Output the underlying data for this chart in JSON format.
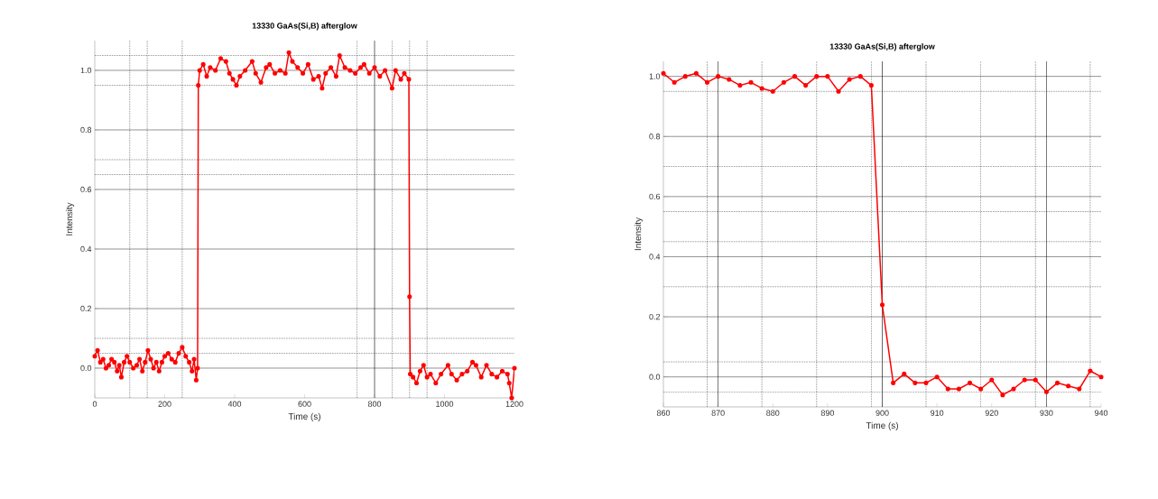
{
  "chart_data": [
    {
      "type": "line",
      "title": "13330 GaAs(Si,B) afterglow",
      "xlabel": "Time (s)",
      "ylabel": "Intensity",
      "grid": "y",
      "marker": "circle",
      "line_style": "solid",
      "x": [
        0,
        8,
        16,
        24,
        32,
        40,
        48,
        56,
        64,
        70,
        76,
        84,
        92,
        100,
        110,
        120,
        128,
        136,
        144,
        152,
        160,
        168,
        176,
        184,
        192,
        200,
        210,
        220,
        230,
        240,
        250,
        260,
        270,
        278,
        284,
        290,
        294,
        296,
        300,
        310,
        320,
        330,
        345,
        360,
        375,
        385,
        395,
        405,
        415,
        430,
        450,
        460,
        475,
        490,
        500,
        515,
        530,
        545,
        555,
        565,
        580,
        595,
        610,
        625,
        640,
        650,
        660,
        675,
        690,
        700,
        715,
        730,
        745,
        760,
        770,
        785,
        800,
        815,
        830,
        850,
        860,
        875,
        885,
        898,
        900,
        902,
        910,
        920,
        930,
        940,
        950,
        960,
        975,
        990,
        1010,
        1020,
        1035,
        1050,
        1065,
        1080,
        1090,
        1105,
        1120,
        1135,
        1150,
        1165,
        1180,
        1185,
        1192,
        1200
      ],
      "series": [
        {
          "color": "#ff0000",
          "values": [
            0.04,
            0.06,
            0.02,
            0.03,
            0.0,
            0.01,
            0.03,
            0.02,
            -0.01,
            0.01,
            -0.03,
            0.02,
            0.04,
            0.02,
            0.0,
            0.01,
            0.03,
            -0.01,
            0.02,
            0.06,
            0.03,
            0.0,
            0.02,
            -0.01,
            0.02,
            0.04,
            0.05,
            0.03,
            0.02,
            0.05,
            0.07,
            0.04,
            0.02,
            -0.01,
            0.03,
            -0.04,
            0.0,
            0.95,
            1.0,
            1.02,
            0.98,
            1.01,
            1.0,
            1.04,
            1.03,
            0.99,
            0.97,
            0.95,
            0.98,
            1.0,
            1.03,
            0.99,
            0.96,
            1.01,
            1.02,
            0.99,
            1.0,
            0.99,
            1.06,
            1.03,
            1.01,
            0.99,
            1.02,
            0.97,
            0.98,
            0.94,
            0.99,
            1.01,
            0.98,
            1.05,
            1.01,
            1.0,
            0.99,
            1.01,
            1.02,
            0.99,
            1.01,
            0.98,
            1.0,
            0.94,
            1.0,
            0.97,
            0.99,
            0.97,
            0.24,
            -0.02,
            -0.03,
            -0.05,
            -0.01,
            0.01,
            -0.03,
            -0.02,
            -0.05,
            -0.02,
            0.01,
            -0.02,
            -0.04,
            -0.02,
            -0.01,
            0.02,
            0.01,
            -0.03,
            0.01,
            -0.02,
            -0.03,
            -0.01,
            -0.02,
            -0.05,
            -0.1,
            0.0
          ]
        }
      ],
      "xlim": [
        0,
        1200
      ],
      "ylim": [
        -0.1,
        1.1
      ],
      "xticks": [
        0,
        200,
        400,
        600,
        800,
        1000,
        1200
      ],
      "yticks": [
        {
          "value": 0,
          "label": "0.0"
        },
        {
          "value": 0.2,
          "label": "0.2"
        },
        {
          "value": 0.4,
          "label": "0.4"
        },
        {
          "value": 0.6,
          "label": "0.6"
        },
        {
          "value": 0.8,
          "label": "0.8"
        },
        {
          "value": 1.0,
          "label": "1.0"
        }
      ],
      "ref_lines": [
        {
          "axis": "x",
          "value": 100,
          "color": "#000000",
          "line_style": "dotted"
        },
        {
          "axis": "x",
          "value": 150,
          "color": "#000000",
          "line_style": "dotted"
        },
        {
          "axis": "x",
          "value": 250,
          "color": "#000000",
          "line_style": "dotted"
        },
        {
          "axis": "x",
          "value": 750,
          "color": "#000000",
          "line_style": "dotted"
        },
        {
          "axis": "x",
          "value": 800,
          "color": "#000000",
          "line_style": "solid"
        },
        {
          "axis": "x",
          "value": 850,
          "color": "#000000",
          "line_style": "dotted"
        },
        {
          "axis": "x",
          "value": 900,
          "color": "#000000",
          "line_style": "dotted"
        },
        {
          "axis": "x",
          "value": 950,
          "color": "#000000",
          "line_style": "dotted"
        },
        {
          "axis": "y",
          "value": 0.05,
          "color": "#000000",
          "line_style": "dotted"
        },
        {
          "axis": "y",
          "value": 0.1,
          "color": "#000000",
          "line_style": "dotted"
        },
        {
          "axis": "y",
          "value": 0.65,
          "color": "#000000",
          "line_style": "dotted"
        },
        {
          "axis": "y",
          "value": 0.7,
          "color": "#000000",
          "line_style": "dotted"
        },
        {
          "axis": "y",
          "value": 0.95,
          "color": "#000000",
          "line_style": "dotted"
        },
        {
          "axis": "y",
          "value": 1.05,
          "color": "#000000",
          "line_style": "dotted"
        }
      ]
    },
    {
      "type": "line",
      "title": "13330 GaAs(Si,B) afterglow",
      "xlabel": "Time (s)",
      "ylabel": "Intensity",
      "grid": "y",
      "marker": "circle",
      "line_style": "solid",
      "x": [
        860,
        862,
        864,
        866,
        868,
        870,
        872,
        874,
        876,
        878,
        880,
        882,
        884,
        886,
        888,
        890,
        892,
        894,
        896,
        898,
        900,
        902,
        904,
        906,
        908,
        910,
        912,
        914,
        916,
        918,
        920,
        922,
        924,
        926,
        928,
        930,
        932,
        934,
        936,
        938,
        940
      ],
      "series": [
        {
          "color": "#ff0000",
          "values": [
            1.01,
            0.98,
            1.0,
            1.01,
            0.98,
            1.0,
            0.99,
            0.97,
            0.98,
            0.96,
            0.95,
            0.98,
            1.0,
            0.97,
            1.0,
            1.0,
            0.95,
            0.99,
            1.0,
            0.97,
            0.24,
            -0.02,
            0.01,
            -0.02,
            -0.02,
            0.0,
            -0.04,
            -0.04,
            -0.02,
            -0.04,
            -0.01,
            -0.06,
            -0.04,
            -0.01,
            -0.01,
            -0.05,
            -0.02,
            -0.03,
            -0.04,
            0.02,
            0.0
          ]
        }
      ],
      "xlim": [
        860,
        940
      ],
      "ylim": [
        -0.1,
        1.05
      ],
      "xticks": [
        860,
        870,
        880,
        890,
        900,
        910,
        920,
        930,
        940
      ],
      "yticks": [
        {
          "value": 0,
          "label": "0.0"
        },
        {
          "value": 0.2,
          "label": "0.2"
        },
        {
          "value": 0.4,
          "label": "0.4"
        },
        {
          "value": 0.6,
          "label": "0.6"
        },
        {
          "value": 0.8,
          "label": "0.8"
        },
        {
          "value": 1.0,
          "label": "1.0"
        }
      ],
      "ref_lines": [
        {
          "axis": "x",
          "value": 868,
          "color": "#000000",
          "line_style": "dotted"
        },
        {
          "axis": "x",
          "value": 870,
          "color": "#000000",
          "line_style": "solid"
        },
        {
          "axis": "x",
          "value": 878,
          "color": "#000000",
          "line_style": "dotted"
        },
        {
          "axis": "x",
          "value": 888,
          "color": "#000000",
          "line_style": "dotted"
        },
        {
          "axis": "x",
          "value": 898,
          "color": "#000000",
          "line_style": "dotted"
        },
        {
          "axis": "x",
          "value": 900,
          "color": "#000000",
          "line_style": "solid"
        },
        {
          "axis": "x",
          "value": 908,
          "color": "#000000",
          "line_style": "dotted"
        },
        {
          "axis": "x",
          "value": 918,
          "color": "#000000",
          "line_style": "dotted"
        },
        {
          "axis": "x",
          "value": 928,
          "color": "#000000",
          "line_style": "dotted"
        },
        {
          "axis": "x",
          "value": 930,
          "color": "#000000",
          "line_style": "solid"
        },
        {
          "axis": "x",
          "value": 938,
          "color": "#000000",
          "line_style": "dotted"
        },
        {
          "axis": "y",
          "value": -0.05,
          "color": "#000000",
          "line_style": "dotted"
        },
        {
          "axis": "y",
          "value": 0.05,
          "color": "#000000",
          "line_style": "dotted"
        },
        {
          "axis": "y",
          "value": 0.3,
          "color": "#000000",
          "line_style": "dotted"
        },
        {
          "axis": "y",
          "value": 0.45,
          "color": "#000000",
          "line_style": "dotted"
        },
        {
          "axis": "y",
          "value": 0.55,
          "color": "#000000",
          "line_style": "dotted"
        },
        {
          "axis": "y",
          "value": 0.7,
          "color": "#000000",
          "line_style": "dotted"
        },
        {
          "axis": "y",
          "value": 0.95,
          "color": "#000000",
          "line_style": "dotted"
        }
      ]
    }
  ]
}
